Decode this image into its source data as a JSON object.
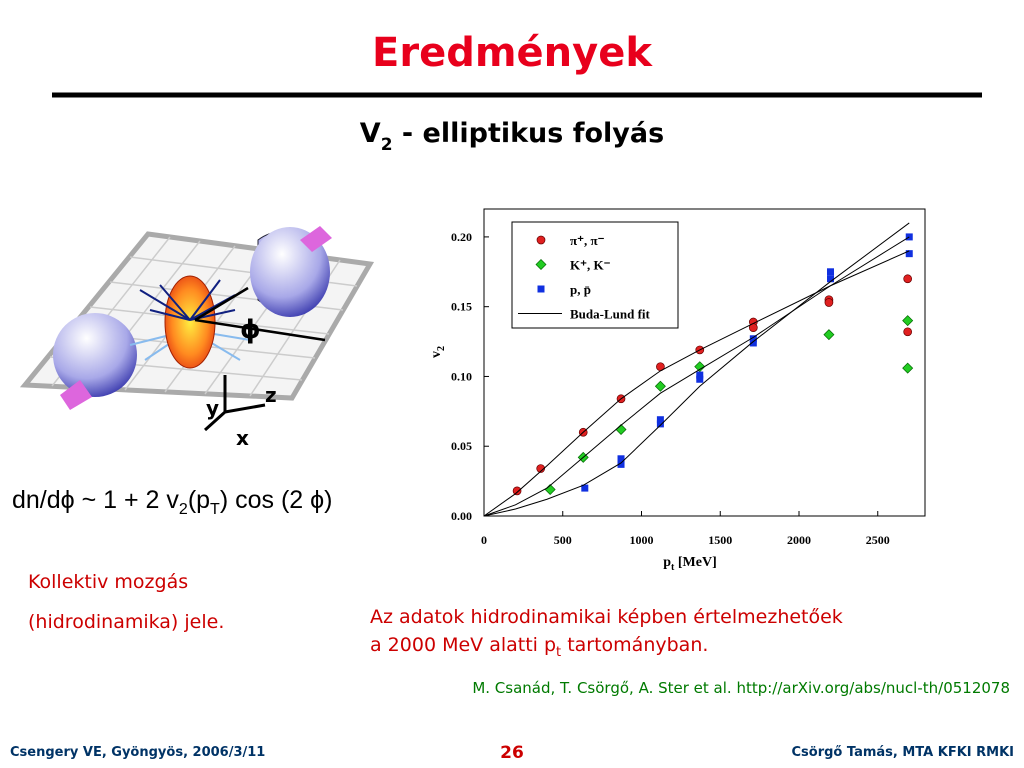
{
  "title": "Eredmények",
  "subtitle": [
    "V",
    "2",
    " - elliptikus folyás"
  ],
  "diagram": {
    "phi": "ϕ",
    "z": "z",
    "y": "y",
    "x": "x"
  },
  "formula": [
    "dn/dϕ ~ 1 + 2 v",
    "2",
    "(p",
    "T",
    ") cos (2 ϕ)"
  ],
  "left_note": [
    "Kollektiv mozgás",
    "(hidrodinamika) jele."
  ],
  "right_note": [
    "Az adatok hidrodinamikai képben értelmezhetőek",
    "a 2000 MeV alatti p",
    "t",
    " tartományban."
  ],
  "reference": "M. Csanád, T. Csörgő, A. Ster et al. http://arXiv.org/abs/nucl-th/0512078",
  "footer": {
    "left": "Csengery VE, Gyöngyös, 2006/3/11",
    "page": "26",
    "right": "Csörgő Tamás, MTA KFKI RMKI"
  },
  "chart_data": {
    "type": "scatter",
    "ylabel": [
      "v",
      "2"
    ],
    "xlabel": [
      "p",
      "t",
      " [MeV]"
    ],
    "xlim": [
      0,
      2800
    ],
    "xticks": [
      0,
      500,
      1000,
      1500,
      2000,
      2500
    ],
    "ylim": [
      0,
      0.22
    ],
    "yticks": [
      {
        "value": 0,
        "label": "0.00"
      },
      0.05,
      {
        "value": 0.1,
        "label": "0.10"
      },
      0.15,
      {
        "value": 0.2,
        "label": "0.20"
      }
    ],
    "series": [
      {
        "name": "π⁺, π⁻",
        "color": "#e02020",
        "marker": "circle",
        "x": [
          210,
          360,
          630,
          870,
          1120,
          1370,
          1710,
          1710,
          2190,
          2190,
          2690,
          2690
        ],
        "values": [
          0.018,
          0.034,
          0.06,
          0.084,
          0.107,
          0.119,
          0.139,
          0.135,
          0.155,
          0.153,
          0.17,
          0.132
        ]
      },
      {
        "name": "K⁺, K⁻",
        "color": "#22cc22",
        "marker": "diamond",
        "x": [
          420,
          630,
          870,
          1120,
          1370,
          2190,
          2690,
          2690
        ],
        "values": [
          0.019,
          0.042,
          0.062,
          0.093,
          0.107,
          0.13,
          0.14,
          0.106
        ]
      },
      {
        "name": "p, p̄",
        "color": "#1030e0",
        "marker": "square",
        "x": [
          640,
          870,
          870,
          1120,
          1120,
          1370,
          1370,
          1710,
          1710,
          2200,
          2200,
          2700,
          2700
        ],
        "values": [
          0.02,
          0.037,
          0.041,
          0.066,
          0.069,
          0.098,
          0.101,
          0.124,
          0.127,
          0.17,
          0.175,
          0.188,
          0.2
        ]
      },
      {
        "name": "Buda-Lund fit",
        "color": "#000000",
        "marker": "line",
        "curves": [
          {
            "x": [
              0,
              200,
              400,
              630,
              870,
              1120,
              1370,
              1710,
              2200,
              2700
            ],
            "values": [
              0,
              0.016,
              0.036,
              0.06,
              0.084,
              0.104,
              0.119,
              0.138,
              0.165,
              0.19
            ]
          },
          {
            "x": [
              0,
              200,
              400,
              630,
              870,
              1120,
              1370,
              1710,
              2200,
              2700
            ],
            "values": [
              0,
              0.008,
              0.02,
              0.042,
              0.065,
              0.088,
              0.105,
              0.128,
              0.165,
              0.2
            ]
          },
          {
            "x": [
              0,
              200,
              400,
              630,
              870,
              1120,
              1370,
              1710,
              2200,
              2700
            ],
            "values": [
              0,
              0.005,
              0.012,
              0.022,
              0.038,
              0.065,
              0.093,
              0.125,
              0.168,
              0.21
            ]
          }
        ]
      }
    ]
  }
}
